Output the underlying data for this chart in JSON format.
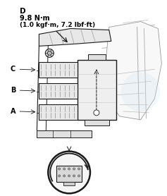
{
  "bg_color": "#ffffff",
  "label_D": "D",
  "torque_line1": "9.8 N·m",
  "torque_line2": "(1.0 kgf·m, 7.2 lbf·ft)",
  "font_color": "#000000",
  "line_color": "#1a1a1a",
  "light_gray": "#cccccc",
  "mid_gray": "#888888",
  "figsize": [
    2.37,
    2.78
  ],
  "dpi": 100
}
